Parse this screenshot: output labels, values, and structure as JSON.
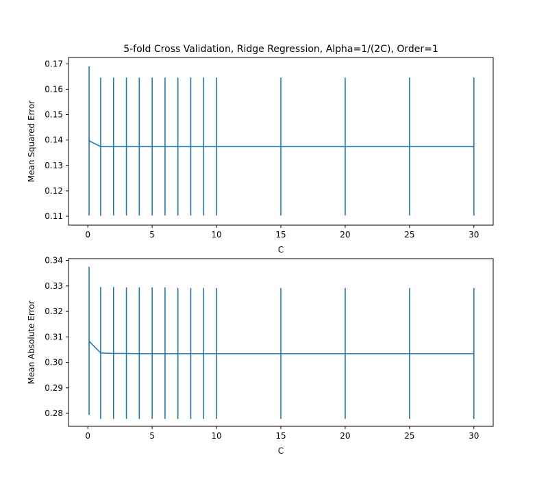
{
  "chart_data": [
    {
      "type": "line",
      "title": "5-fold Cross Validation, Ridge Regression, Alpha=1/(2C), Order=1",
      "xlabel": "C",
      "ylabel": "Mean Squared Error",
      "xlim": [
        -1.5,
        31.5
      ],
      "ylim": [
        0.1065,
        0.1725
      ],
      "xticks": [
        0,
        5,
        10,
        15,
        20,
        25,
        30
      ],
      "xtick_labels": [
        "0",
        "5",
        "10",
        "15",
        "20",
        "25",
        "30"
      ],
      "yticks": [
        0.11,
        0.12,
        0.13,
        0.14,
        0.15,
        0.16,
        0.17
      ],
      "ytick_labels": [
        "0.11",
        "0.12",
        "0.13",
        "0.14",
        "0.15",
        "0.16",
        "0.17"
      ],
      "grid": false,
      "color": "#1f77b4",
      "series": [
        {
          "x": [
            0.1,
            1,
            2,
            3,
            4,
            5,
            6,
            7,
            8,
            9,
            10,
            15,
            20,
            25,
            30
          ],
          "y": [
            0.1397,
            0.1374,
            0.1374,
            0.1374,
            0.1374,
            0.1374,
            0.1374,
            0.1374,
            0.1374,
            0.1374,
            0.1374,
            0.1374,
            0.1374,
            0.1374,
            0.1374
          ],
          "err_low": [
            0.1103,
            0.1102,
            0.1103,
            0.1103,
            0.1103,
            0.1103,
            0.1103,
            0.1103,
            0.1103,
            0.1103,
            0.1103,
            0.1103,
            0.1103,
            0.1103,
            0.1103
          ],
          "err_high": [
            0.169,
            0.1646,
            0.1646,
            0.1646,
            0.1646,
            0.1646,
            0.1646,
            0.1646,
            0.1646,
            0.1646,
            0.1646,
            0.1646,
            0.1646,
            0.1646,
            0.1646
          ]
        }
      ]
    },
    {
      "type": "line",
      "title": "",
      "xlabel": "C",
      "ylabel": "Mean Absolute Error",
      "xlim": [
        -1.5,
        31.5
      ],
      "ylim": [
        0.2749,
        0.3407
      ],
      "xticks": [
        0,
        5,
        10,
        15,
        20,
        25,
        30
      ],
      "xtick_labels": [
        "0",
        "5",
        "10",
        "15",
        "20",
        "25",
        "30"
      ],
      "yticks": [
        0.28,
        0.29,
        0.3,
        0.31,
        0.32,
        0.33,
        0.34
      ],
      "ytick_labels": [
        "0.28",
        "0.29",
        "0.30",
        "0.31",
        "0.32",
        "0.33",
        "0.34"
      ],
      "grid": false,
      "color": "#1f77b4",
      "series": [
        {
          "x": [
            0.1,
            1,
            2,
            3,
            4,
            5,
            6,
            7,
            8,
            9,
            10,
            15,
            20,
            25,
            30
          ],
          "y": [
            0.3083,
            0.3037,
            0.3035,
            0.3035,
            0.3034,
            0.3034,
            0.3034,
            0.3034,
            0.3034,
            0.3034,
            0.3034,
            0.3034,
            0.3034,
            0.3034,
            0.3034
          ],
          "err_low": [
            0.2794,
            0.2778,
            0.2778,
            0.2778,
            0.2778,
            0.2778,
            0.2778,
            0.2778,
            0.2778,
            0.2778,
            0.2778,
            0.2778,
            0.2778,
            0.2778,
            0.2778
          ],
          "err_high": [
            0.3375,
            0.3296,
            0.3296,
            0.3294,
            0.3294,
            0.3294,
            0.3294,
            0.3292,
            0.3292,
            0.3292,
            0.3292,
            0.3292,
            0.3292,
            0.3292,
            0.3292
          ]
        }
      ]
    }
  ]
}
